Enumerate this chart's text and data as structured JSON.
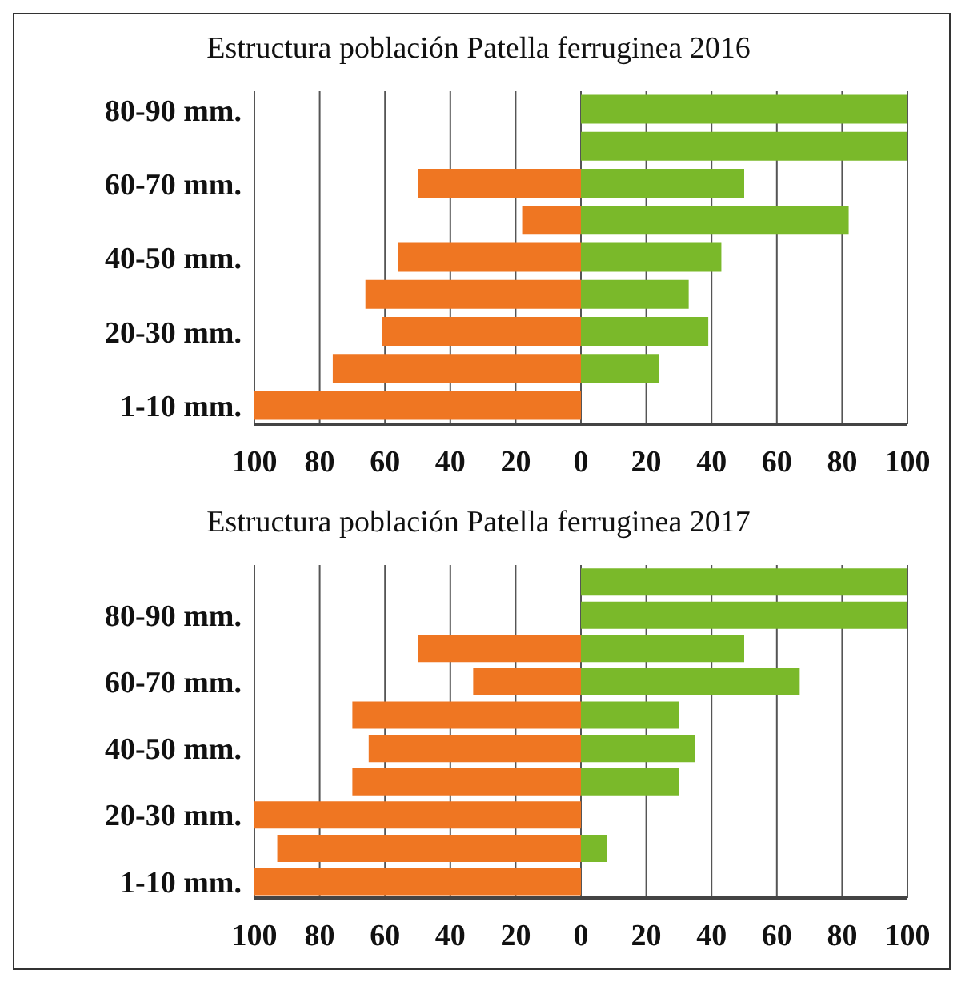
{
  "chart_data": [
    {
      "type": "bar",
      "title": "Estructura población Patella ferruginea 2016",
      "orientation": "horizontal",
      "stacked": true,
      "grid": "x",
      "categories": [
        "80-90 mm.",
        null,
        "60-70 mm.",
        null,
        "40-50 mm.",
        null,
        "20-30 mm.",
        null,
        "1-10 mm."
      ],
      "series": [
        {
          "color": "#ef7622",
          "values": [
            0,
            0,
            -50,
            -18,
            -56,
            -66,
            -61,
            -76,
            -100
          ]
        },
        {
          "color": "#7ab92a",
          "values": [
            100,
            100,
            50,
            82,
            43,
            33,
            39,
            24,
            0
          ]
        }
      ],
      "xlim": [
        -100,
        100
      ],
      "xticks": [
        {
          "value": -100,
          "label": "100"
        },
        {
          "value": -80,
          "label": "80"
        },
        {
          "value": -60,
          "label": "60"
        },
        {
          "value": -40,
          "label": "40"
        },
        {
          "value": -20,
          "label": "20"
        },
        0,
        20,
        40,
        60,
        80,
        100
      ]
    },
    {
      "type": "bar",
      "title": "Estructura población Patella ferruginea 2017",
      "orientation": "horizontal",
      "stacked": true,
      "grid": "x",
      "categories": [
        null,
        "80-90 mm.",
        null,
        "60-70 mm.",
        null,
        "40-50 mm.",
        null,
        "20-30 mm.",
        null,
        "1-10 mm."
      ],
      "series": [
        {
          "color": "#ef7622",
          "values": [
            0,
            0,
            -50,
            -33,
            -70,
            -65,
            -70,
            -100,
            -93,
            -100
          ]
        },
        {
          "color": "#7ab92a",
          "values": [
            100,
            100,
            50,
            67,
            30,
            35,
            30,
            0,
            8,
            0
          ]
        }
      ],
      "xlim": [
        -100,
        100
      ],
      "xticks": [
        {
          "value": -100,
          "label": "100"
        },
        {
          "value": -80,
          "label": "80"
        },
        {
          "value": -60,
          "label": "60"
        },
        {
          "value": -40,
          "label": "40"
        },
        {
          "value": -20,
          "label": "20"
        },
        0,
        20,
        40,
        60,
        80,
        100
      ]
    }
  ]
}
